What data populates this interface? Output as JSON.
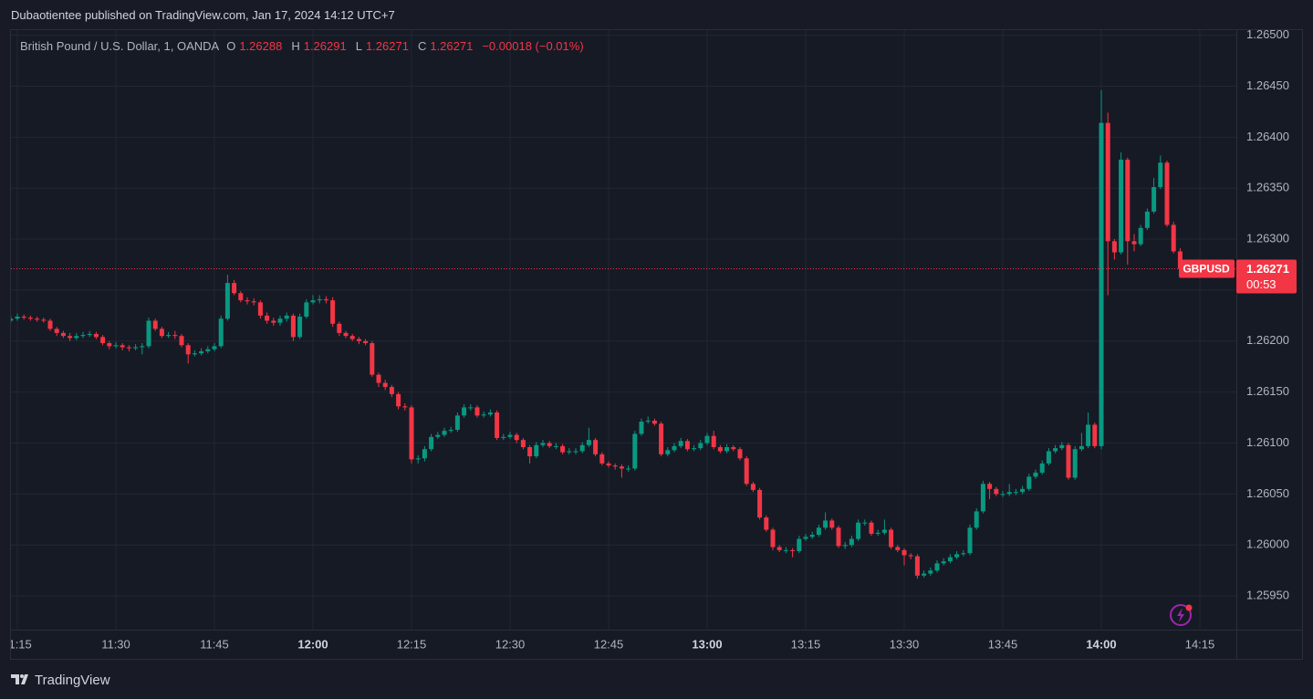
{
  "header": {
    "publisher": "Dubaotientee published on TradingView.com, Jan 17, 2024 14:12 UTC+7"
  },
  "footer": {
    "brand": "TradingView"
  },
  "chart_data": {
    "type": "candlestick",
    "symbol": "British Pound / U.S. Dollar, 1, OANDA",
    "legend": {
      "o_label": "O",
      "o_value": 1.26288,
      "h_label": "H",
      "h_value": 1.26291,
      "l_label": "L",
      "l_value": 1.26271,
      "c_label": "C",
      "c_value": 1.26271,
      "change": "−0.00018 (−0.01%)"
    },
    "price_tag": {
      "symbol": "GBPUSD",
      "value": 1.26271,
      "countdown": "00:53"
    },
    "up_color": "#089981",
    "down_color": "#f23645",
    "grid": true,
    "ylim": [
      1.25917,
      1.26505
    ],
    "yticks": [
      {
        "value": 1.265,
        "label": "1.26500"
      },
      {
        "value": 1.2645,
        "label": "1.26450"
      },
      {
        "value": 1.264,
        "label": "1.26400"
      },
      {
        "value": 1.2635,
        "label": "1.26350"
      },
      {
        "value": 1.263,
        "label": "1.26300"
      },
      {
        "value": 1.2625,
        "label": "1.26250"
      },
      {
        "value": 1.262,
        "label": "1.26200"
      },
      {
        "value": 1.2615,
        "label": "1.26150"
      },
      {
        "value": 1.261,
        "label": "1.26100"
      },
      {
        "value": 1.2605,
        "label": "1.26050"
      },
      {
        "value": 1.26,
        "label": "1.26000"
      },
      {
        "value": 1.2595,
        "label": "1.25950"
      }
    ],
    "xticks": [
      "11:15",
      "11:30",
      "11:45",
      "12:00",
      "12:15",
      "12:30",
      "12:45",
      "13:00",
      "13:15",
      "13:30",
      "13:45",
      "14:00",
      "14:15"
    ],
    "categories": [
      "11:14",
      "11:15",
      "11:16",
      "11:17",
      "11:18",
      "11:19",
      "11:20",
      "11:21",
      "11:22",
      "11:23",
      "11:24",
      "11:25",
      "11:26",
      "11:27",
      "11:28",
      "11:29",
      "11:30",
      "11:31",
      "11:32",
      "11:33",
      "11:34",
      "11:35",
      "11:36",
      "11:37",
      "11:38",
      "11:39",
      "11:40",
      "11:41",
      "11:42",
      "11:43",
      "11:44",
      "11:45",
      "11:46",
      "11:47",
      "11:48",
      "11:49",
      "11:50",
      "11:51",
      "11:52",
      "11:53",
      "11:54",
      "11:55",
      "11:56",
      "11:57",
      "11:58",
      "11:59",
      "12:00",
      "12:01",
      "12:02",
      "12:03",
      "12:04",
      "12:05",
      "12:06",
      "12:07",
      "12:08",
      "12:09",
      "12:10",
      "12:11",
      "12:12",
      "12:13",
      "12:14",
      "12:15",
      "12:16",
      "12:17",
      "12:18",
      "12:19",
      "12:20",
      "12:21",
      "12:22",
      "12:23",
      "12:24",
      "12:25",
      "12:26",
      "12:27",
      "12:28",
      "12:29",
      "12:30",
      "12:31",
      "12:32",
      "12:33",
      "12:34",
      "12:35",
      "12:36",
      "12:37",
      "12:38",
      "12:39",
      "12:40",
      "12:41",
      "12:42",
      "12:43",
      "12:44",
      "12:45",
      "12:46",
      "12:47",
      "12:48",
      "12:49",
      "12:50",
      "12:51",
      "12:52",
      "12:53",
      "12:54",
      "12:55",
      "12:56",
      "12:57",
      "12:58",
      "12:59",
      "13:00",
      "13:01",
      "13:02",
      "13:03",
      "13:04",
      "13:05",
      "13:06",
      "13:07",
      "13:08",
      "13:09",
      "13:10",
      "13:11",
      "13:12",
      "13:13",
      "13:14",
      "13:15",
      "13:16",
      "13:17",
      "13:18",
      "13:19",
      "13:20",
      "13:21",
      "13:22",
      "13:23",
      "13:24",
      "13:25",
      "13:26",
      "13:27",
      "13:28",
      "13:29",
      "13:30",
      "13:31",
      "13:32",
      "13:33",
      "13:34",
      "13:35",
      "13:36",
      "13:37",
      "13:38",
      "13:39",
      "13:40",
      "13:41",
      "13:42",
      "13:43",
      "13:44",
      "13:45",
      "13:46",
      "13:47",
      "13:48",
      "13:49",
      "13:50",
      "13:51",
      "13:52",
      "13:53",
      "13:54",
      "13:55",
      "13:56",
      "13:57",
      "13:58",
      "13:59",
      "14:00",
      "14:01",
      "14:02",
      "14:03",
      "14:04",
      "14:05",
      "14:06",
      "14:07",
      "14:08",
      "14:09",
      "14:10",
      "14:11",
      "14:12"
    ],
    "ohlc": [
      [
        1.2622,
        1.26225,
        1.26218,
        1.26222
      ],
      [
        1.26222,
        1.26227,
        1.2622,
        1.26224
      ],
      [
        1.26224,
        1.26226,
        1.26221,
        1.26223
      ],
      [
        1.26223,
        1.26225,
        1.2622,
        1.26222
      ],
      [
        1.26222,
        1.26224,
        1.26219,
        1.26221
      ],
      [
        1.26221,
        1.26223,
        1.26218,
        1.2622
      ],
      [
        1.2622,
        1.26222,
        1.2621,
        1.26212
      ],
      [
        1.26212,
        1.26214,
        1.26205,
        1.26208
      ],
      [
        1.26208,
        1.2621,
        1.26203,
        1.26205
      ],
      [
        1.26205,
        1.26208,
        1.262,
        1.26203
      ],
      [
        1.26203,
        1.26208,
        1.26201,
        1.26205
      ],
      [
        1.26205,
        1.26209,
        1.26203,
        1.26206
      ],
      [
        1.26206,
        1.2621,
        1.26204,
        1.26207
      ],
      [
        1.26207,
        1.26209,
        1.26202,
        1.26204
      ],
      [
        1.26204,
        1.26206,
        1.26196,
        1.26198
      ],
      [
        1.26198,
        1.262,
        1.26192,
        1.26195
      ],
      [
        1.26195,
        1.26199,
        1.26193,
        1.26196
      ],
      [
        1.26196,
        1.26198,
        1.26191,
        1.26194
      ],
      [
        1.26194,
        1.26196,
        1.2619,
        1.26193
      ],
      [
        1.26193,
        1.26197,
        1.26191,
        1.26194
      ],
      [
        1.26194,
        1.26198,
        1.26187,
        1.26195
      ],
      [
        1.26195,
        1.26223,
        1.26193,
        1.2622
      ],
      [
        1.2622,
        1.26222,
        1.2621,
        1.26212
      ],
      [
        1.26212,
        1.26214,
        1.26203,
        1.26205
      ],
      [
        1.26205,
        1.26209,
        1.26203,
        1.26206
      ],
      [
        1.26206,
        1.2621,
        1.26202,
        1.26205
      ],
      [
        1.26205,
        1.26207,
        1.26194,
        1.26196
      ],
      [
        1.26196,
        1.26198,
        1.26178,
        1.26187
      ],
      [
        1.26187,
        1.26191,
        1.26185,
        1.26188
      ],
      [
        1.26188,
        1.26193,
        1.26186,
        1.2619
      ],
      [
        1.2619,
        1.26195,
        1.26188,
        1.26192
      ],
      [
        1.26192,
        1.26198,
        1.2619,
        1.26195
      ],
      [
        1.26195,
        1.26225,
        1.26193,
        1.26222
      ],
      [
        1.26222,
        1.26265,
        1.2622,
        1.26257
      ],
      [
        1.26257,
        1.2626,
        1.26245,
        1.26247
      ],
      [
        1.26247,
        1.26249,
        1.26238,
        1.2624
      ],
      [
        1.2624,
        1.26243,
        1.26236,
        1.26239
      ],
      [
        1.26239,
        1.26242,
        1.26235,
        1.26238
      ],
      [
        1.26238,
        1.2624,
        1.26222,
        1.26225
      ],
      [
        1.26225,
        1.26228,
        1.26217,
        1.2622
      ],
      [
        1.2622,
        1.26223,
        1.26215,
        1.26218
      ],
      [
        1.26218,
        1.26225,
        1.26215,
        1.26222
      ],
      [
        1.26222,
        1.26228,
        1.26219,
        1.26225
      ],
      [
        1.26225,
        1.26227,
        1.262,
        1.26204
      ],
      [
        1.26204,
        1.26227,
        1.26202,
        1.26224
      ],
      [
        1.26224,
        1.26241,
        1.26222,
        1.26238
      ],
      [
        1.26238,
        1.26245,
        1.26236,
        1.2624
      ],
      [
        1.2624,
        1.26245,
        1.26237,
        1.26241
      ],
      [
        1.26241,
        1.26244,
        1.26237,
        1.2624
      ],
      [
        1.2624,
        1.26243,
        1.26214,
        1.26217
      ],
      [
        1.26217,
        1.26219,
        1.26205,
        1.26208
      ],
      [
        1.26208,
        1.2621,
        1.26203,
        1.26205
      ],
      [
        1.26205,
        1.26207,
        1.262,
        1.26202
      ],
      [
        1.26202,
        1.26204,
        1.26197,
        1.262
      ],
      [
        1.262,
        1.26202,
        1.26196,
        1.26198
      ],
      [
        1.26198,
        1.262,
        1.26165,
        1.26167
      ],
      [
        1.26167,
        1.26169,
        1.26155,
        1.26159
      ],
      [
        1.26159,
        1.26162,
        1.26152,
        1.26155
      ],
      [
        1.26155,
        1.26157,
        1.26145,
        1.26148
      ],
      [
        1.26148,
        1.2615,
        1.26133,
        1.26136
      ],
      [
        1.26136,
        1.26139,
        1.26132,
        1.26135
      ],
      [
        1.26135,
        1.26137,
        1.2608,
        1.26084
      ],
      [
        1.26084,
        1.26088,
        1.2608,
        1.26085
      ],
      [
        1.26085,
        1.26097,
        1.26082,
        1.26094
      ],
      [
        1.26094,
        1.26109,
        1.26092,
        1.26106
      ],
      [
        1.26106,
        1.26111,
        1.26104,
        1.26108
      ],
      [
        1.26108,
        1.26115,
        1.26106,
        1.26112
      ],
      [
        1.26112,
        1.26116,
        1.2611,
        1.26113
      ],
      [
        1.26113,
        1.2613,
        1.26111,
        1.26127
      ],
      [
        1.26127,
        1.26138,
        1.26125,
        1.26135
      ],
      [
        1.26135,
        1.26138,
        1.26132,
        1.26135
      ],
      [
        1.26135,
        1.26137,
        1.26125,
        1.26127
      ],
      [
        1.26127,
        1.26131,
        1.26125,
        1.26128
      ],
      [
        1.26128,
        1.26133,
        1.26126,
        1.2613
      ],
      [
        1.2613,
        1.26132,
        1.26103,
        1.26105
      ],
      [
        1.26105,
        1.26109,
        1.26103,
        1.26106
      ],
      [
        1.26106,
        1.26111,
        1.26104,
        1.26108
      ],
      [
        1.26108,
        1.2611,
        1.261,
        1.26103
      ],
      [
        1.26103,
        1.26105,
        1.26094,
        1.26096
      ],
      [
        1.26096,
        1.26098,
        1.2608,
        1.26087
      ],
      [
        1.26087,
        1.26101,
        1.26085,
        1.26098
      ],
      [
        1.26098,
        1.26103,
        1.26096,
        1.261
      ],
      [
        1.261,
        1.26102,
        1.26095,
        1.26097
      ],
      [
        1.26097,
        1.261,
        1.26094,
        1.26097
      ],
      [
        1.26097,
        1.26099,
        1.26089,
        1.26091
      ],
      [
        1.26091,
        1.26095,
        1.26089,
        1.26092
      ],
      [
        1.26092,
        1.26095,
        1.26089,
        1.26092
      ],
      [
        1.26092,
        1.26101,
        1.2609,
        1.26098
      ],
      [
        1.26098,
        1.26115,
        1.26096,
        1.26103
      ],
      [
        1.26103,
        1.26105,
        1.26087,
        1.26089
      ],
      [
        1.26089,
        1.26091,
        1.26078,
        1.2608
      ],
      [
        1.2608,
        1.26082,
        1.26076,
        1.26078
      ],
      [
        1.26078,
        1.2608,
        1.26074,
        1.26077
      ],
      [
        1.26077,
        1.26079,
        1.26066,
        1.26075
      ],
      [
        1.26075,
        1.26078,
        1.26072,
        1.26075
      ],
      [
        1.26075,
        1.26112,
        1.26073,
        1.26109
      ],
      [
        1.26109,
        1.26124,
        1.26107,
        1.26121
      ],
      [
        1.26121,
        1.26126,
        1.26119,
        1.26122
      ],
      [
        1.26122,
        1.26124,
        1.26117,
        1.26119
      ],
      [
        1.26119,
        1.26121,
        1.26087,
        1.26089
      ],
      [
        1.26089,
        1.26096,
        1.26087,
        1.26093
      ],
      [
        1.26093,
        1.261,
        1.26091,
        1.26097
      ],
      [
        1.26097,
        1.26105,
        1.26095,
        1.26102
      ],
      [
        1.26102,
        1.26104,
        1.26092,
        1.26094
      ],
      [
        1.26094,
        1.26098,
        1.26092,
        1.26095
      ],
      [
        1.26095,
        1.26103,
        1.26093,
        1.261
      ],
      [
        1.261,
        1.2611,
        1.26098,
        1.26107
      ],
      [
        1.26107,
        1.26112,
        1.26094,
        1.26096
      ],
      [
        1.26096,
        1.26098,
        1.2609,
        1.26092
      ],
      [
        1.26092,
        1.26099,
        1.2609,
        1.26096
      ],
      [
        1.26096,
        1.26098,
        1.26092,
        1.26094
      ],
      [
        1.26094,
        1.26096,
        1.26083,
        1.26085
      ],
      [
        1.26085,
        1.26087,
        1.26058,
        1.2606
      ],
      [
        1.2606,
        1.26062,
        1.26052,
        1.26054
      ],
      [
        1.26054,
        1.26056,
        1.26025,
        1.26027
      ],
      [
        1.26027,
        1.26029,
        1.26013,
        1.26015
      ],
      [
        1.26015,
        1.26017,
        1.25995,
        1.25998
      ],
      [
        1.25998,
        1.26,
        1.25993,
        1.25995
      ],
      [
        1.25995,
        1.25998,
        1.25992,
        1.25995
      ],
      [
        1.25995,
        1.25997,
        1.25988,
        1.25994
      ],
      [
        1.25994,
        1.26009,
        1.25992,
        1.26006
      ],
      [
        1.26006,
        1.26011,
        1.26004,
        1.26008
      ],
      [
        1.26008,
        1.26013,
        1.26006,
        1.2601
      ],
      [
        1.2601,
        1.2602,
        1.26008,
        1.26017
      ],
      [
        1.26017,
        1.26032,
        1.26015,
        1.26024
      ],
      [
        1.26024,
        1.26026,
        1.26015,
        1.26017
      ],
      [
        1.26017,
        1.26019,
        1.25997,
        1.25999
      ],
      [
        1.25999,
        1.26003,
        1.25996,
        1.26
      ],
      [
        1.26,
        1.26009,
        1.25998,
        1.26006
      ],
      [
        1.26006,
        1.26025,
        1.26004,
        1.26022
      ],
      [
        1.26022,
        1.26025,
        1.26019,
        1.26022
      ],
      [
        1.26022,
        1.26024,
        1.26009,
        1.26011
      ],
      [
        1.26011,
        1.26015,
        1.26009,
        1.26012
      ],
      [
        1.26012,
        1.26025,
        1.2601,
        1.26015
      ],
      [
        1.26015,
        1.26017,
        1.25996,
        1.25998
      ],
      [
        1.25998,
        1.26,
        1.25993,
        1.25995
      ],
      [
        1.25995,
        1.25997,
        1.2598,
        1.2599
      ],
      [
        1.2599,
        1.25992,
        1.25986,
        1.25989
      ],
      [
        1.25989,
        1.25991,
        1.25967,
        1.2597
      ],
      [
        1.2597,
        1.25975,
        1.25968,
        1.25972
      ],
      [
        1.25972,
        1.25978,
        1.2597,
        1.25975
      ],
      [
        1.25975,
        1.25985,
        1.25973,
        1.25982
      ],
      [
        1.25982,
        1.25987,
        1.2598,
        1.25984
      ],
      [
        1.25984,
        1.25991,
        1.25982,
        1.25988
      ],
      [
        1.25988,
        1.25994,
        1.25986,
        1.25991
      ],
      [
        1.25991,
        1.25995,
        1.25989,
        1.25992
      ],
      [
        1.25992,
        1.2602,
        1.2599,
        1.26017
      ],
      [
        1.26017,
        1.26036,
        1.26015,
        1.26033
      ],
      [
        1.26033,
        1.26063,
        1.26031,
        1.2606
      ],
      [
        1.2606,
        1.26062,
        1.26045,
        1.26055
      ],
      [
        1.26055,
        1.26057,
        1.26048,
        1.2605
      ],
      [
        1.2605,
        1.26053,
        1.26047,
        1.2605
      ],
      [
        1.2605,
        1.2606,
        1.26048,
        1.26052
      ],
      [
        1.26052,
        1.26055,
        1.26049,
        1.26052
      ],
      [
        1.26052,
        1.26058,
        1.2605,
        1.26055
      ],
      [
        1.26055,
        1.2607,
        1.26053,
        1.26067
      ],
      [
        1.26067,
        1.26074,
        1.26065,
        1.26071
      ],
      [
        1.26071,
        1.26083,
        1.26069,
        1.2608
      ],
      [
        1.2608,
        1.26095,
        1.26078,
        1.26092
      ],
      [
        1.26092,
        1.26098,
        1.2609,
        1.26095
      ],
      [
        1.26095,
        1.26101,
        1.26093,
        1.26098
      ],
      [
        1.26098,
        1.261,
        1.26064,
        1.26066
      ],
      [
        1.26066,
        1.26097,
        1.26064,
        1.26094
      ],
      [
        1.26094,
        1.2611,
        1.26092,
        1.26097
      ],
      [
        1.26097,
        1.2613,
        1.26095,
        1.26118
      ],
      [
        1.26118,
        1.2612,
        1.26095,
        1.26097
      ],
      [
        1.26097,
        1.26446,
        1.26094,
        1.26414
      ],
      [
        1.26414,
        1.26424,
        1.26245,
        1.26298
      ],
      [
        1.26298,
        1.263,
        1.2628,
        1.26287
      ],
      [
        1.26287,
        1.26385,
        1.26285,
        1.26378
      ],
      [
        1.26378,
        1.2638,
        1.26275,
        1.26298
      ],
      [
        1.26298,
        1.26305,
        1.26288,
        1.26295
      ],
      [
        1.26295,
        1.26314,
        1.26293,
        1.26311
      ],
      [
        1.26311,
        1.2633,
        1.26309,
        1.26327
      ],
      [
        1.26327,
        1.2636,
        1.26325,
        1.26351
      ],
      [
        1.26351,
        1.26382,
        1.26349,
        1.26375
      ],
      [
        1.26375,
        1.26377,
        1.26312,
        1.26314
      ],
      [
        1.26314,
        1.26317,
        1.26286,
        1.26288
      ],
      [
        1.26288,
        1.26291,
        1.26271,
        1.26271
      ]
    ]
  }
}
